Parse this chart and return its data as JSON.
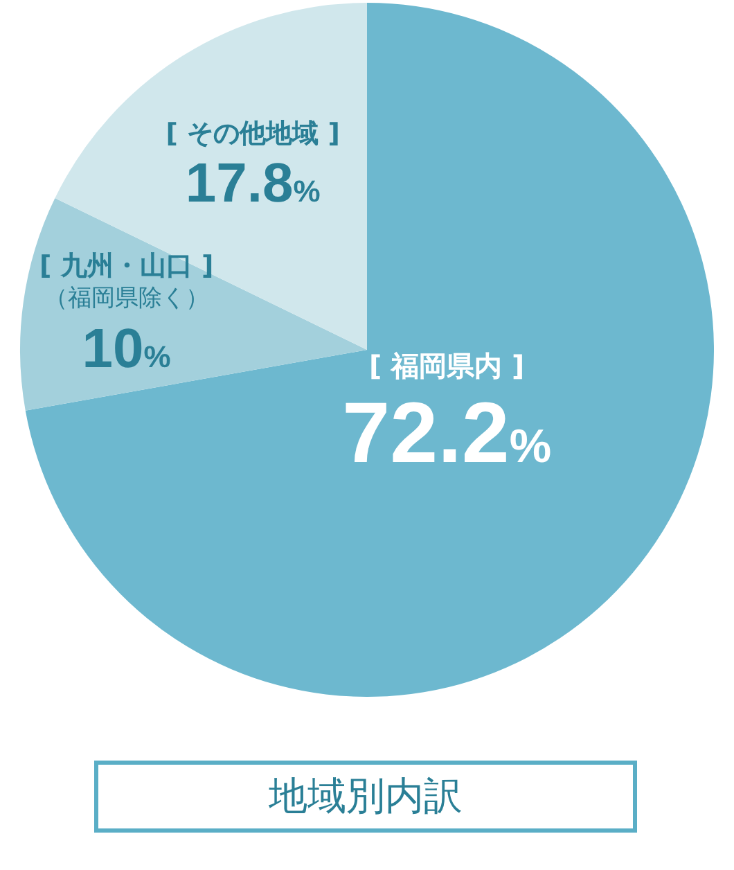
{
  "chart_data": {
    "type": "pie",
    "title": "地域別内訳",
    "categories": [
      "[ 福岡県内 ]",
      "[ 九州・山口 ]\n（福岡県除く）",
      "[ その他地域 ]"
    ],
    "values": [
      72.2,
      10,
      17.8
    ],
    "value_labels": [
      "72.2%",
      "10%",
      "17.8%"
    ],
    "colors": [
      "#6db8cf",
      "#a3d0dc",
      "#d0e7ec"
    ],
    "legend": false
  }
}
